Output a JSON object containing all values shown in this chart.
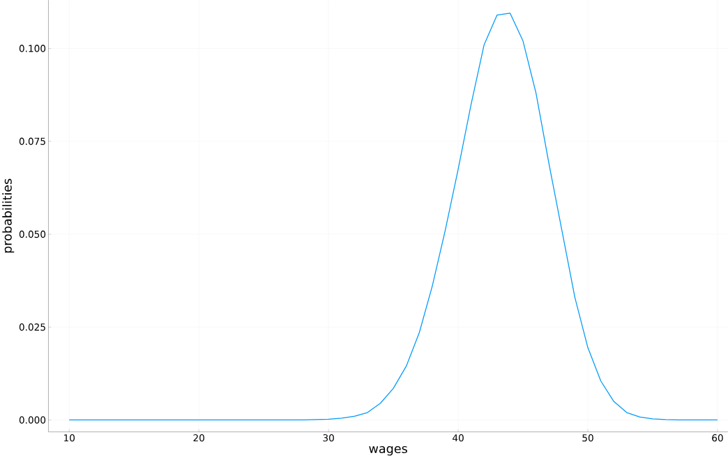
{
  "chart_data": {
    "type": "line",
    "xlabel": "wages",
    "ylabel": "probabilities",
    "x": [
      10,
      11,
      12,
      13,
      14,
      15,
      16,
      17,
      18,
      19,
      20,
      21,
      22,
      23,
      24,
      25,
      26,
      27,
      28,
      29,
      30,
      31,
      32,
      33,
      34,
      35,
      36,
      37,
      38,
      39,
      40,
      41,
      42,
      43,
      44,
      45,
      46,
      47,
      48,
      49,
      50,
      51,
      52,
      53,
      54,
      55,
      56,
      57,
      58,
      59,
      60
    ],
    "series": [
      {
        "color": "#009af9",
        "values": [
          0,
          0,
          0,
          0,
          0,
          0,
          0,
          0,
          0,
          0,
          0,
          0,
          0,
          0,
          0,
          0,
          0,
          0,
          0,
          0.0001,
          0.0002,
          0.0005,
          0.001,
          0.002,
          0.0045,
          0.0085,
          0.0145,
          0.0235,
          0.036,
          0.051,
          0.0675,
          0.085,
          0.101,
          0.109,
          0.1095,
          0.102,
          0.088,
          0.069,
          0.051,
          0.033,
          0.0195,
          0.0105,
          0.005,
          0.002,
          0.0008,
          0.0003,
          0.0001,
          0,
          0,
          0,
          0
        ]
      }
    ],
    "xlim": [
      8.4,
      60.8
    ],
    "ylim": [
      -0.0032,
      0.113
    ],
    "xticks": [
      10,
      20,
      30,
      40,
      50,
      60
    ],
    "yticks": [
      {
        "value": 0,
        "label": "0.000"
      },
      {
        "value": 0.025,
        "label": "0.025"
      },
      {
        "value": 0.05,
        "label": "0.050"
      },
      {
        "value": 0.075,
        "label": "0.075"
      },
      {
        "value": 0.1,
        "label": "0.100"
      }
    ],
    "grid": true,
    "marker": "none",
    "line_style": "solid"
  }
}
